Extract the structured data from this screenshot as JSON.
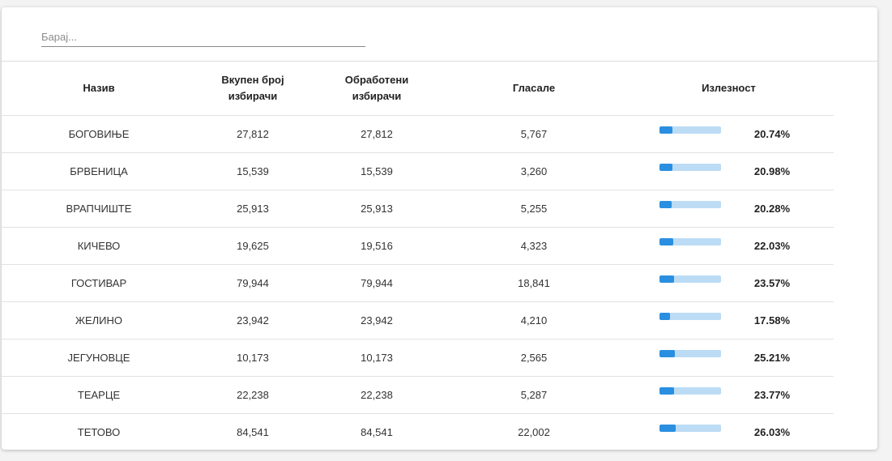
{
  "search": {
    "placeholder": "Барај..."
  },
  "table": {
    "headers": {
      "name": "Назив",
      "total_voters": [
        "Вкупен број",
        "избирачи"
      ],
      "processed_voters": [
        "Обработени",
        "избирачи"
      ],
      "voted": "Гласале",
      "turnout": "Излезност"
    },
    "rows": [
      {
        "name": "БОГОВИЊЕ",
        "total": "27,812",
        "processed": "27,812",
        "voted": "5,767",
        "turnout": "20.74%",
        "turnout_value": 20.74
      },
      {
        "name": "БРВЕНИЦА",
        "total": "15,539",
        "processed": "15,539",
        "voted": "3,260",
        "turnout": "20.98%",
        "turnout_value": 20.98
      },
      {
        "name": "ВРАПЧИШТЕ",
        "total": "25,913",
        "processed": "25,913",
        "voted": "5,255",
        "turnout": "20.28%",
        "turnout_value": 20.28
      },
      {
        "name": "КИЧЕВО",
        "total": "19,625",
        "processed": "19,516",
        "voted": "4,323",
        "turnout": "22.03%",
        "turnout_value": 22.03
      },
      {
        "name": "ГОСТИВАР",
        "total": "79,944",
        "processed": "79,944",
        "voted": "18,841",
        "turnout": "23.57%",
        "turnout_value": 23.57
      },
      {
        "name": "ЖЕЛИНО",
        "total": "23,942",
        "processed": "23,942",
        "voted": "4,210",
        "turnout": "17.58%",
        "turnout_value": 17.58
      },
      {
        "name": "ЈЕГУНОВЦЕ",
        "total": "10,173",
        "processed": "10,173",
        "voted": "2,565",
        "turnout": "25.21%",
        "turnout_value": 25.21
      },
      {
        "name": "ТЕАРЦЕ",
        "total": "22,238",
        "processed": "22,238",
        "voted": "5,287",
        "turnout": "23.77%",
        "turnout_value": 23.77
      },
      {
        "name": "ТЕТОВО",
        "total": "84,541",
        "processed": "84,541",
        "voted": "22,002",
        "turnout": "26.03%",
        "turnout_value": 26.03
      }
    ]
  },
  "colors": {
    "link": "#4a90d9",
    "bar_fill": "#2a8fe0",
    "bar_track": "#bcdcf5"
  }
}
